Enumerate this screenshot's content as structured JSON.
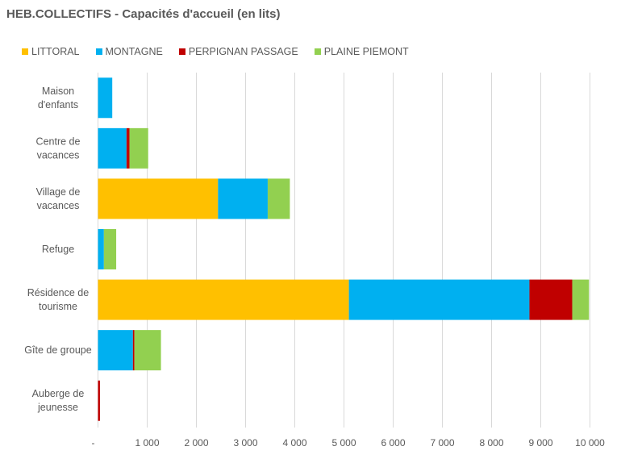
{
  "chart_data": {
    "type": "bar",
    "orientation": "horizontal",
    "stacked": true,
    "title": "HEB.COLLECTIFS - Capacités d'accueil (en lits)",
    "xlabel": "",
    "ylabel": "",
    "xlim": [
      0,
      10000
    ],
    "grid": true,
    "legend_position": "top",
    "categories": [
      [
        "Maison",
        "d'enfants"
      ],
      [
        "Centre de",
        "vacances"
      ],
      [
        "Village de",
        "vacances"
      ],
      [
        "Refuge"
      ],
      [
        "Résidence de",
        "tourisme"
      ],
      [
        "Gîte de groupe"
      ],
      [
        "Auberge de",
        "jeunesse"
      ]
    ],
    "series": [
      {
        "name": "LITTORAL",
        "color": "#FFC000",
        "values": [
          0,
          0,
          2440,
          0,
          5100,
          0,
          0
        ]
      },
      {
        "name": "MONTAGNE",
        "color": "#00B0F0",
        "values": [
          290,
          580,
          1010,
          120,
          3670,
          710,
          0
        ]
      },
      {
        "name": "PERPIGNAN PASSAGE",
        "color": "#C00000",
        "values": [
          0,
          60,
          0,
          0,
          870,
          30,
          40
        ]
      },
      {
        "name": "PLAINE PIEMONT",
        "color": "#92D050",
        "values": [
          0,
          380,
          450,
          250,
          340,
          540,
          0
        ]
      }
    ],
    "ticks": [
      0,
      1000,
      2000,
      3000,
      4000,
      5000,
      6000,
      7000,
      8000,
      9000,
      10000
    ],
    "tick_labels": [
      "-",
      "1 000",
      "2 000",
      "3 000",
      "4 000",
      "5 000",
      "6 000",
      "7 000",
      "8 000",
      "9 000",
      "10 000"
    ]
  }
}
